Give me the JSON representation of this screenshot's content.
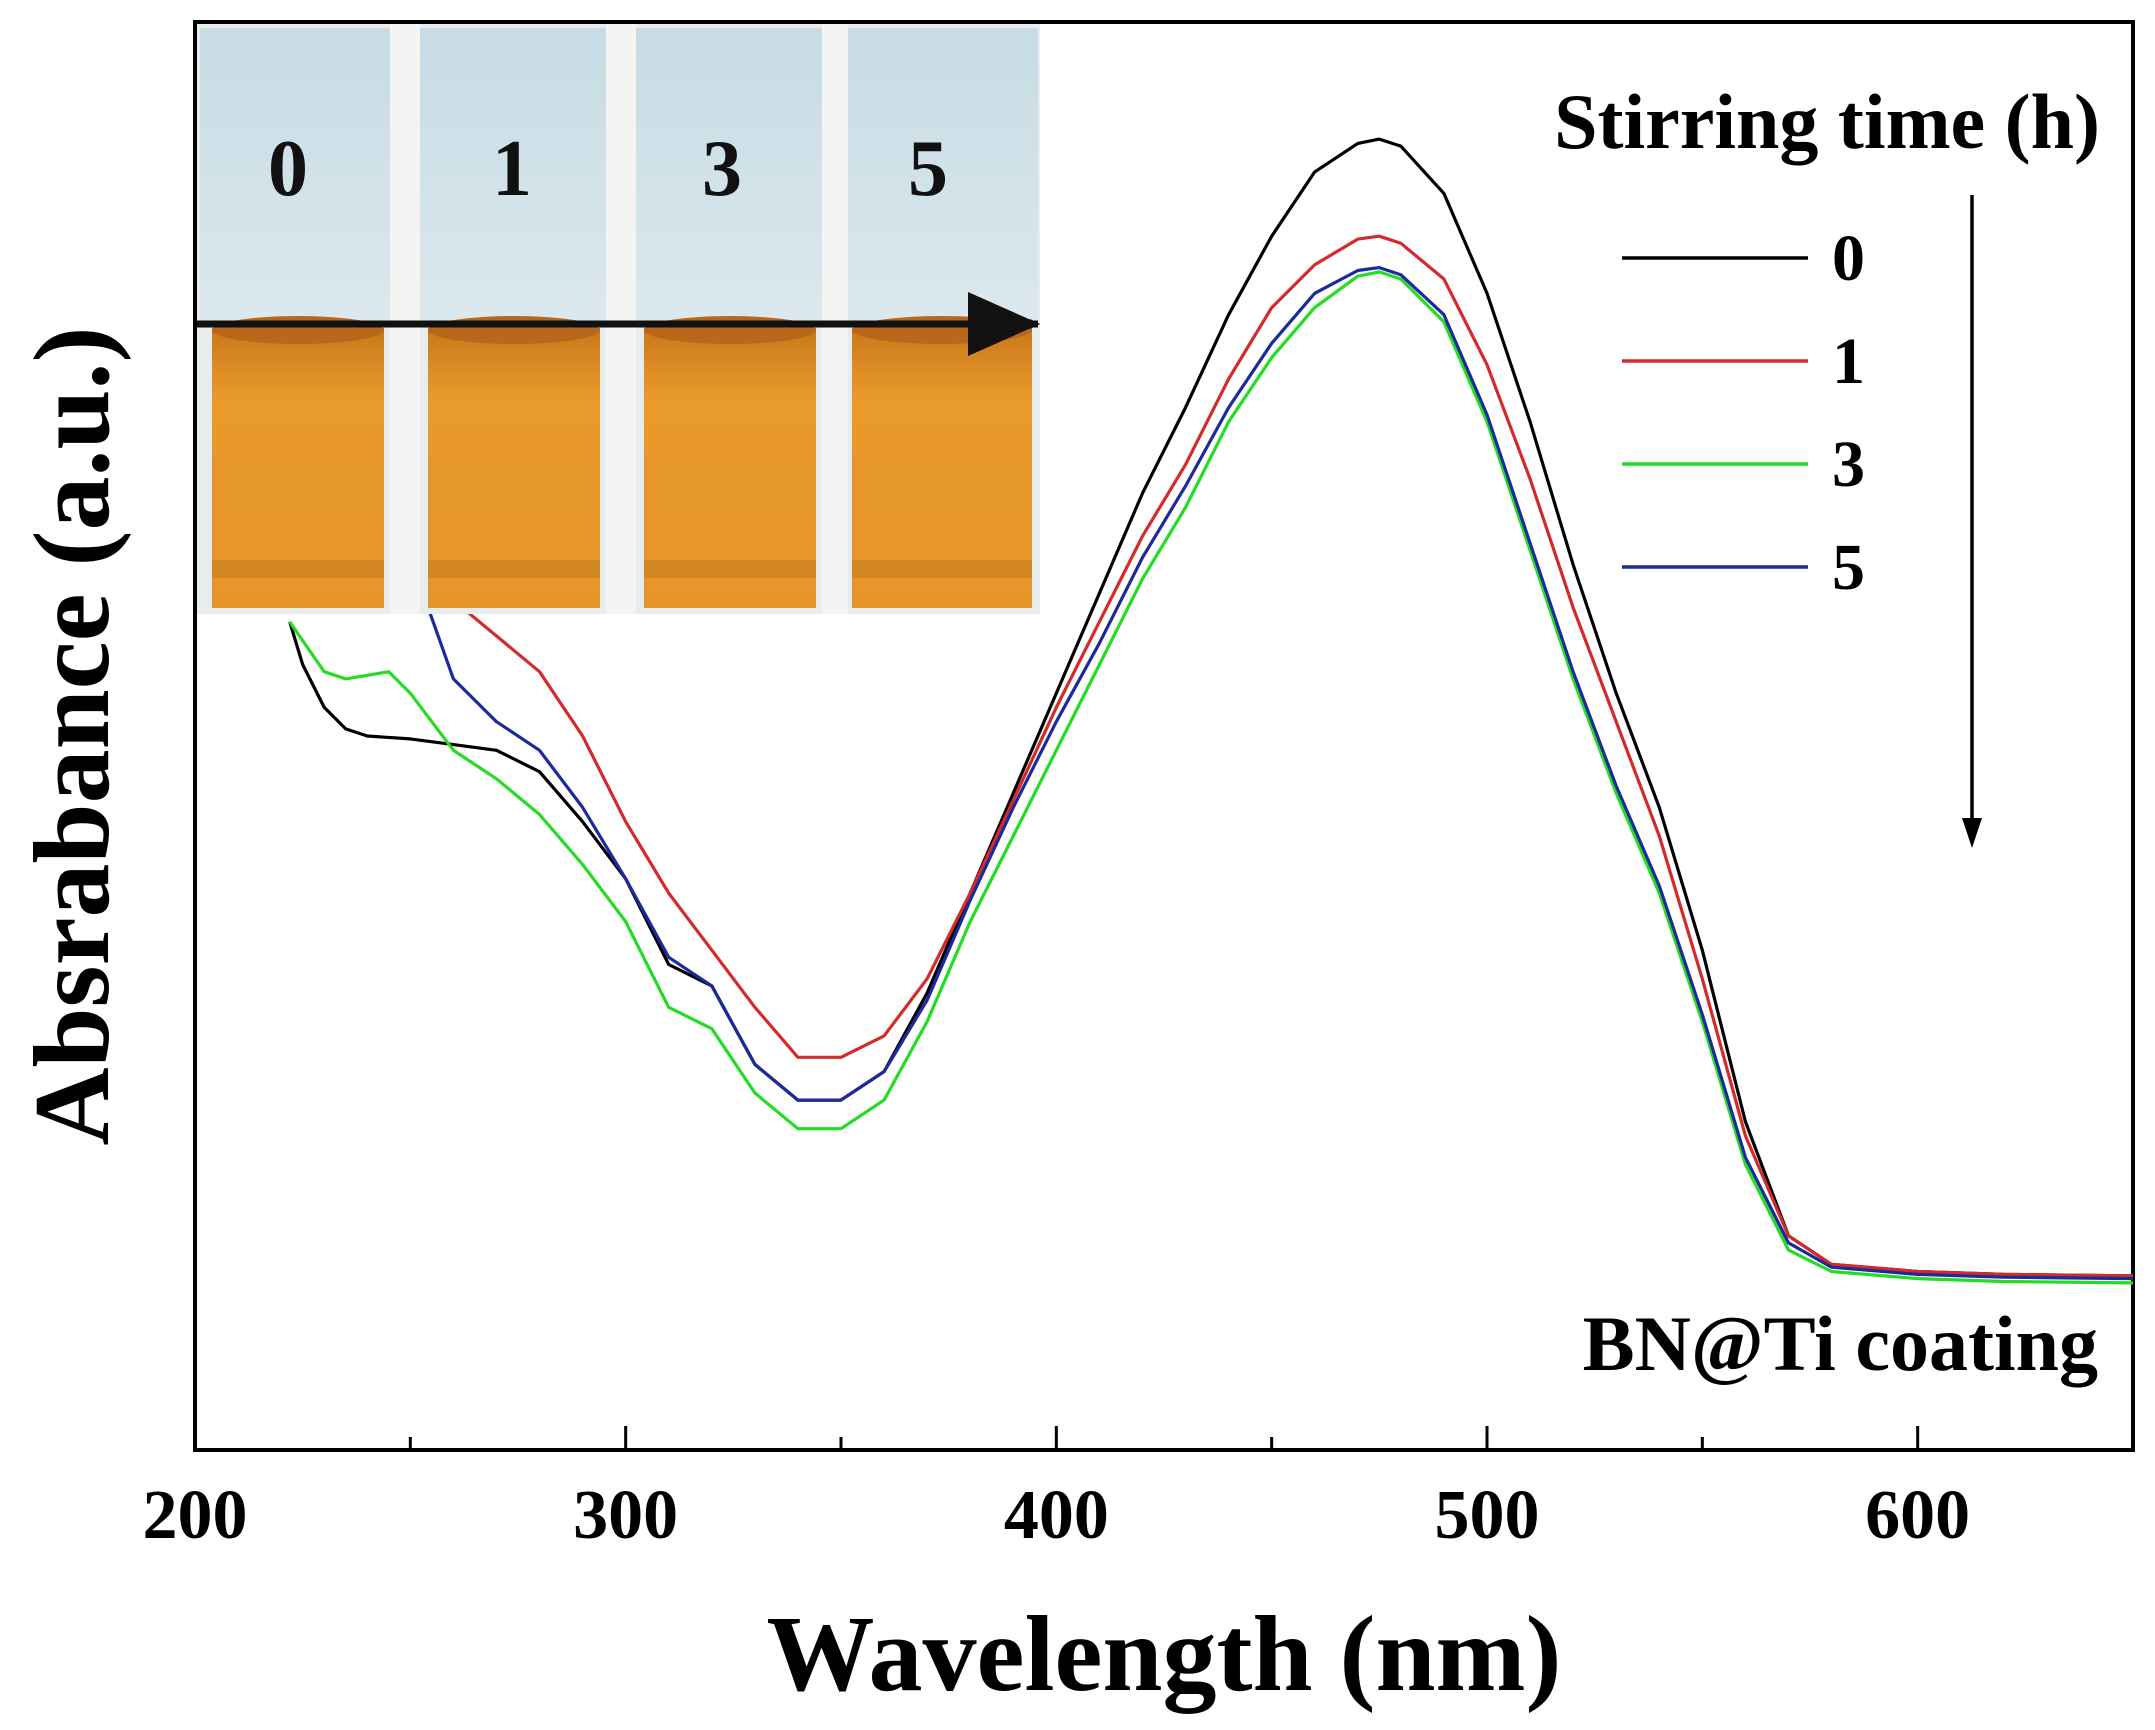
{
  "chart_data": {
    "type": "line",
    "xlabel": "Wavelength (nm)",
    "ylabel": "Absrabance (a.u.)",
    "xlim": [
      200,
      650
    ],
    "ylim": [
      0,
      1
    ],
    "x_ticks": [
      200,
      300,
      400,
      500,
      600
    ],
    "x_tick_labels": [
      "200",
      "300",
      "400",
      "500",
      "600"
    ],
    "y_tick_labels_shown": false,
    "grid": false,
    "legend_title": "Stirring time (h)",
    "legend_position": "top-right",
    "annotation": "BN@Ti coating",
    "inset": {
      "type": "photo",
      "position": "top-left",
      "cuvette_labels": [
        "0",
        "1",
        "3",
        "5"
      ]
    },
    "series": [
      {
        "name": "0",
        "color": "#000000",
        "points": [
          [
            222,
            0.58
          ],
          [
            225,
            0.55
          ],
          [
            230,
            0.52
          ],
          [
            235,
            0.505
          ],
          [
            240,
            0.5
          ],
          [
            250,
            0.498
          ],
          [
            260,
            0.494
          ],
          [
            270,
            0.49
          ],
          [
            280,
            0.475
          ],
          [
            290,
            0.44
          ],
          [
            300,
            0.4
          ],
          [
            310,
            0.34
          ],
          [
            320,
            0.325
          ],
          [
            330,
            0.27
          ],
          [
            340,
            0.245
          ],
          [
            350,
            0.245
          ],
          [
            360,
            0.265
          ],
          [
            370,
            0.32
          ],
          [
            380,
            0.39
          ],
          [
            390,
            0.46
          ],
          [
            400,
            0.53
          ],
          [
            410,
            0.6
          ],
          [
            420,
            0.67
          ],
          [
            430,
            0.73
          ],
          [
            440,
            0.795
          ],
          [
            450,
            0.85
          ],
          [
            460,
            0.895
          ],
          [
            470,
            0.915
          ],
          [
            475,
            0.918
          ],
          [
            480,
            0.913
          ],
          [
            490,
            0.88
          ],
          [
            500,
            0.81
          ],
          [
            510,
            0.72
          ],
          [
            520,
            0.62
          ],
          [
            530,
            0.53
          ],
          [
            540,
            0.45
          ],
          [
            550,
            0.35
          ],
          [
            560,
            0.23
          ],
          [
            570,
            0.15
          ],
          [
            580,
            0.13
          ],
          [
            600,
            0.125
          ],
          [
            620,
            0.123
          ],
          [
            650,
            0.122
          ]
        ]
      },
      {
        "name": "1",
        "color": "#d42a2a",
        "points": [
          [
            222,
            0.65
          ],
          [
            240,
            0.635
          ],
          [
            250,
            0.62
          ],
          [
            260,
            0.595
          ],
          [
            270,
            0.57
          ],
          [
            280,
            0.545
          ],
          [
            290,
            0.5
          ],
          [
            300,
            0.44
          ],
          [
            310,
            0.39
          ],
          [
            320,
            0.35
          ],
          [
            330,
            0.31
          ],
          [
            340,
            0.275
          ],
          [
            350,
            0.275
          ],
          [
            360,
            0.29
          ],
          [
            370,
            0.33
          ],
          [
            380,
            0.39
          ],
          [
            390,
            0.455
          ],
          [
            400,
            0.52
          ],
          [
            410,
            0.58
          ],
          [
            420,
            0.64
          ],
          [
            430,
            0.69
          ],
          [
            440,
            0.75
          ],
          [
            450,
            0.8
          ],
          [
            460,
            0.83
          ],
          [
            470,
            0.848
          ],
          [
            475,
            0.85
          ],
          [
            480,
            0.845
          ],
          [
            490,
            0.82
          ],
          [
            500,
            0.76
          ],
          [
            510,
            0.68
          ],
          [
            520,
            0.59
          ],
          [
            530,
            0.51
          ],
          [
            540,
            0.43
          ],
          [
            550,
            0.33
          ],
          [
            560,
            0.22
          ],
          [
            570,
            0.15
          ],
          [
            580,
            0.13
          ],
          [
            600,
            0.125
          ],
          [
            620,
            0.123
          ],
          [
            650,
            0.122
          ]
        ]
      },
      {
        "name": "3",
        "color": "#22dd22",
        "points": [
          [
            222,
            0.58
          ],
          [
            230,
            0.545
          ],
          [
            235,
            0.54
          ],
          [
            245,
            0.545
          ],
          [
            250,
            0.53
          ],
          [
            260,
            0.49
          ],
          [
            270,
            0.47
          ],
          [
            280,
            0.445
          ],
          [
            290,
            0.41
          ],
          [
            300,
            0.37
          ],
          [
            310,
            0.31
          ],
          [
            320,
            0.295
          ],
          [
            330,
            0.25
          ],
          [
            340,
            0.225
          ],
          [
            350,
            0.225
          ],
          [
            360,
            0.245
          ],
          [
            370,
            0.3
          ],
          [
            380,
            0.37
          ],
          [
            390,
            0.43
          ],
          [
            400,
            0.49
          ],
          [
            410,
            0.55
          ],
          [
            420,
            0.61
          ],
          [
            430,
            0.66
          ],
          [
            440,
            0.72
          ],
          [
            450,
            0.765
          ],
          [
            460,
            0.8
          ],
          [
            470,
            0.822
          ],
          [
            475,
            0.825
          ],
          [
            480,
            0.82
          ],
          [
            490,
            0.79
          ],
          [
            500,
            0.72
          ],
          [
            510,
            0.63
          ],
          [
            520,
            0.54
          ],
          [
            530,
            0.46
          ],
          [
            540,
            0.39
          ],
          [
            550,
            0.3
          ],
          [
            560,
            0.2
          ],
          [
            570,
            0.14
          ],
          [
            580,
            0.125
          ],
          [
            600,
            0.12
          ],
          [
            620,
            0.118
          ],
          [
            650,
            0.117
          ]
        ]
      },
      {
        "name": "5",
        "color": "#1c2a9c",
        "points": [
          [
            222,
            0.635
          ],
          [
            240,
            0.632
          ],
          [
            250,
            0.625
          ],
          [
            260,
            0.54
          ],
          [
            270,
            0.51
          ],
          [
            280,
            0.49
          ],
          [
            290,
            0.45
          ],
          [
            300,
            0.4
          ],
          [
            310,
            0.345
          ],
          [
            320,
            0.325
          ],
          [
            330,
            0.27
          ],
          [
            340,
            0.245
          ],
          [
            350,
            0.245
          ],
          [
            360,
            0.265
          ],
          [
            370,
            0.315
          ],
          [
            380,
            0.385
          ],
          [
            390,
            0.45
          ],
          [
            400,
            0.51
          ],
          [
            410,
            0.565
          ],
          [
            420,
            0.625
          ],
          [
            430,
            0.675
          ],
          [
            440,
            0.73
          ],
          [
            450,
            0.775
          ],
          [
            460,
            0.81
          ],
          [
            470,
            0.826
          ],
          [
            475,
            0.828
          ],
          [
            480,
            0.823
          ],
          [
            490,
            0.795
          ],
          [
            500,
            0.725
          ],
          [
            510,
            0.635
          ],
          [
            520,
            0.545
          ],
          [
            530,
            0.465
          ],
          [
            540,
            0.395
          ],
          [
            550,
            0.305
          ],
          [
            560,
            0.205
          ],
          [
            570,
            0.145
          ],
          [
            580,
            0.128
          ],
          [
            600,
            0.123
          ],
          [
            620,
            0.121
          ],
          [
            650,
            0.12
          ]
        ]
      }
    ]
  }
}
